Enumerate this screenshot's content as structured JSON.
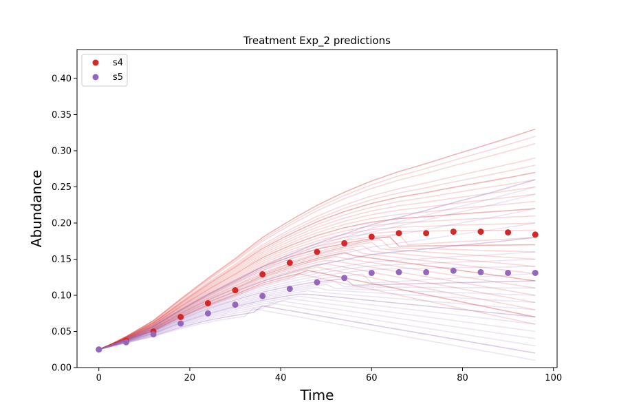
{
  "chart_data": {
    "type": "scatter",
    "title": "Treatment Exp_2 predictions",
    "xlabel": "Time",
    "ylabel": "Abundance",
    "xlim": [
      -4.8,
      100.8
    ],
    "ylim": [
      0.0,
      0.44
    ],
    "xticks": [
      0,
      20,
      40,
      60,
      80,
      100
    ],
    "yticks": [
      0.0,
      0.05,
      0.1,
      0.15,
      0.2,
      0.25,
      0.3,
      0.35,
      0.4
    ],
    "ytick_labels": [
      "0.00",
      "0.05",
      "0.10",
      "0.15",
      "0.20",
      "0.25",
      "0.30",
      "0.35",
      "0.40"
    ],
    "grid": false,
    "legend": "top-left",
    "series": [
      {
        "name": "s4",
        "color": "#d62728",
        "x": [
          0,
          6,
          12,
          18,
          24,
          30,
          36,
          42,
          48,
          54,
          60,
          66,
          72,
          78,
          84,
          90,
          96
        ],
        "values": [
          0.025,
          0.037,
          0.05,
          0.07,
          0.089,
          0.107,
          0.129,
          0.145,
          0.16,
          0.172,
          0.181,
          0.186,
          0.186,
          0.188,
          0.188,
          0.187,
          0.184
        ]
      },
      {
        "name": "s5",
        "color": "#9467bd",
        "x": [
          0,
          6,
          12,
          18,
          24,
          30,
          36,
          42,
          48,
          54,
          60,
          66,
          72,
          78,
          84,
          90,
          96
        ],
        "values": [
          0.025,
          0.035,
          0.046,
          0.061,
          0.075,
          0.087,
          0.099,
          0.109,
          0.118,
          0.124,
          0.131,
          0.132,
          0.132,
          0.134,
          0.132,
          0.131,
          0.131
        ]
      }
    ],
    "prediction_bands": [
      {
        "series": "s4",
        "color": "#d62728",
        "endpoints_at_96": [
          0.33,
          0.32,
          0.31,
          0.29,
          0.28,
          0.27,
          0.26,
          0.25,
          0.24,
          0.23,
          0.22,
          0.21,
          0.2,
          0.19,
          0.18,
          0.17,
          0.16,
          0.15,
          0.14,
          0.13,
          0.12,
          0.11,
          0.1,
          0.09,
          0.08,
          0.07,
          0.06
        ]
      },
      {
        "series": "s5",
        "color": "#9467bd",
        "endpoints_at_96": [
          0.26,
          0.25,
          0.24,
          0.22,
          0.2,
          0.18,
          0.16,
          0.15,
          0.14,
          0.13,
          0.12,
          0.11,
          0.1,
          0.09,
          0.08,
          0.07,
          0.06,
          0.05,
          0.04,
          0.03,
          0.02,
          0.01
        ]
      }
    ]
  }
}
